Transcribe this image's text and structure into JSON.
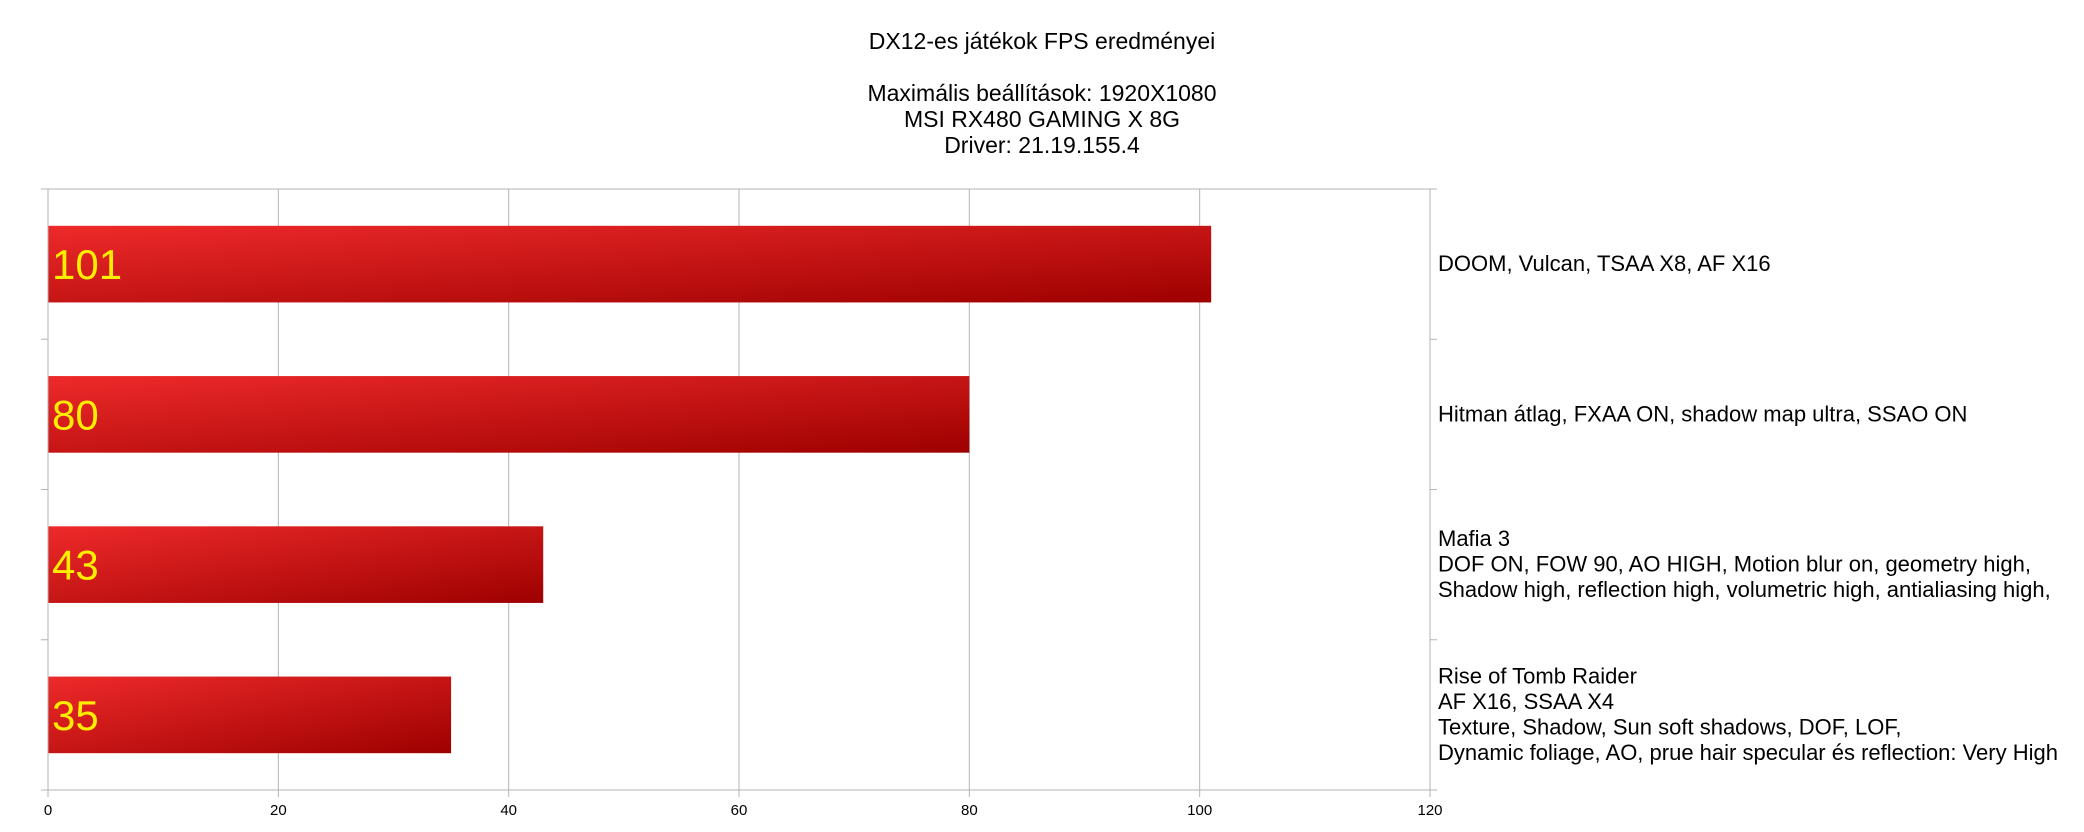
{
  "chart_data": {
    "type": "bar",
    "orientation": "horizontal",
    "title": "DX12-es játékok FPS eredményei",
    "subtitle_lines": [
      "Maximális beállítások: 1920X1080",
      "MSI RX480 GAMING X 8G",
      "Driver: 21.19.155.4"
    ],
    "categories": [
      [
        "DOOM, Vulcan, TSAA X8, AF X16"
      ],
      [
        "Hitman átlag, FXAA ON, shadow map ultra, SSAO ON"
      ],
      [
        "Mafia 3",
        "DOF ON, FOW 90, AO HIGH, Motion blur on, geometry high,",
        "Shadow high, reflection high, volumetric high, antialiasing high,"
      ],
      [
        "Rise of Tomb Raider",
        "AF X16, SSAA X4",
        "Texture, Shadow, Sun soft shadows, DOF, LOF,",
        "Dynamic foliage, AO, prue hair specular és reflection: Very High"
      ]
    ],
    "values": [
      101,
      80,
      43,
      35
    ],
    "data_labels": [
      "101",
      "80",
      "43",
      "35"
    ],
    "xlim": [
      0,
      120
    ],
    "xticks": [
      0,
      20,
      40,
      60,
      80,
      100,
      120
    ],
    "xtick_labels": [
      "0",
      "20",
      "40",
      "60",
      "80",
      "100",
      "120"
    ],
    "category_axis_position": "right",
    "grid": true,
    "legend": false,
    "colors": {
      "bar_start": "#ee2a2a",
      "bar_end": "#9e0000",
      "label": "#ffee00",
      "grid": "#b3b3b3"
    }
  }
}
